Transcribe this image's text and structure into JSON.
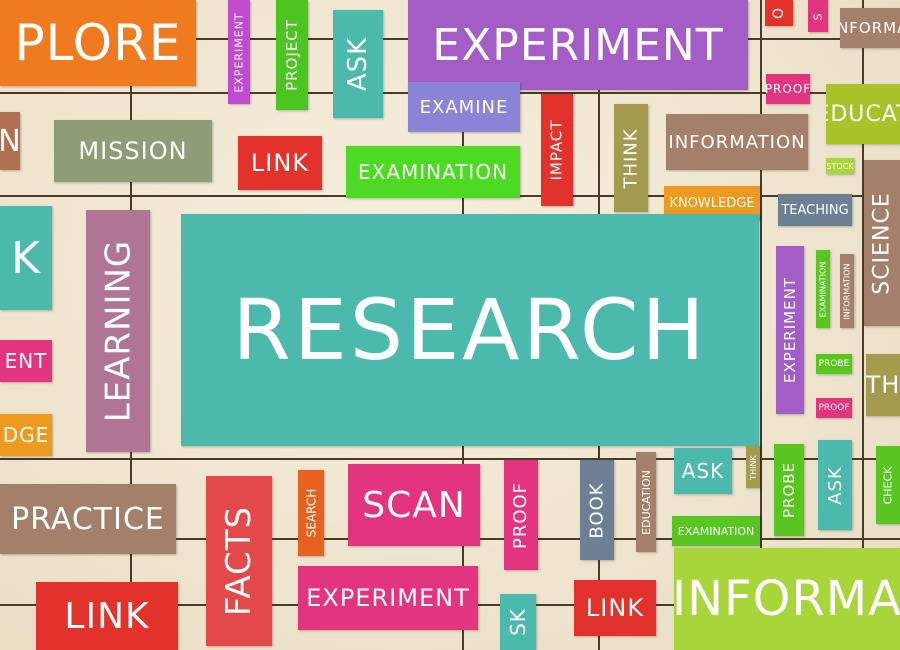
{
  "words": {
    "plore": "PLORE",
    "experiment_top": "EXPERIMENT",
    "experiment_v1": "EXPERIMENT",
    "project": "PROJECT",
    "ask_top": "ASK",
    "inform_topright": "INFORMA",
    "proof_top": "PROOF",
    "o_top": "O",
    "s_top": "S",
    "educat": "EDUCAT",
    "examine": "EXAMINE",
    "mission": "MISSION",
    "link_1": "LINK",
    "examination_1": "EXAMINATION",
    "impact": "IMPACT",
    "think_1": "THINK",
    "information_1": "INFORMATION",
    "stock": "STOCK",
    "knowledge_1": "KNOWLEDGE",
    "teaching": "TEACHING",
    "k_left": "K",
    "learning": "LEARNING",
    "research": "RESEARCH",
    "experiment_v2": "EXPERIMENT",
    "examination_v": "EXAMINATION",
    "information_v": "INFORMATION",
    "science": "SCIENCE",
    "probe_small": "PROBE",
    "proof_small": "PROOF",
    "th": "TH",
    "ent": "ENT",
    "dge": "DGE",
    "practice": "PRACTICE",
    "facts": "FACTS",
    "search": "SEARCH",
    "scan": "SCAN",
    "proof_mid": "PROOF",
    "book": "BOOK",
    "education_v": "EDUCATION",
    "ask_mid": "ASK",
    "think_small": "THINK",
    "probe_v": "PROBE",
    "ask_v": "ASK",
    "check": "CHECK",
    "examination_2": "EXAMINATION",
    "experiment_bottom": "EXPERIMENT",
    "link_bottom": "LINK",
    "sk_bottom": "SK",
    "link_bottom2": "LINK",
    "informa_bottom": "INFORMA",
    "lm_left": "N"
  },
  "colors": {
    "orange": "#f07a1e",
    "purple": "#a45cc7",
    "green": "#58c520",
    "teal": "#4bb9ac",
    "violet": "#8a84d6",
    "red": "#e2322b",
    "olive": "#a49b4e",
    "brown": "#a4806b",
    "pink": "#e3347f",
    "mauve": "#b07595",
    "lightgreen": "#a8d63a",
    "goldorange": "#ee9a1e",
    "steel": "#6c7f93",
    "sage": "#8d9e77"
  }
}
